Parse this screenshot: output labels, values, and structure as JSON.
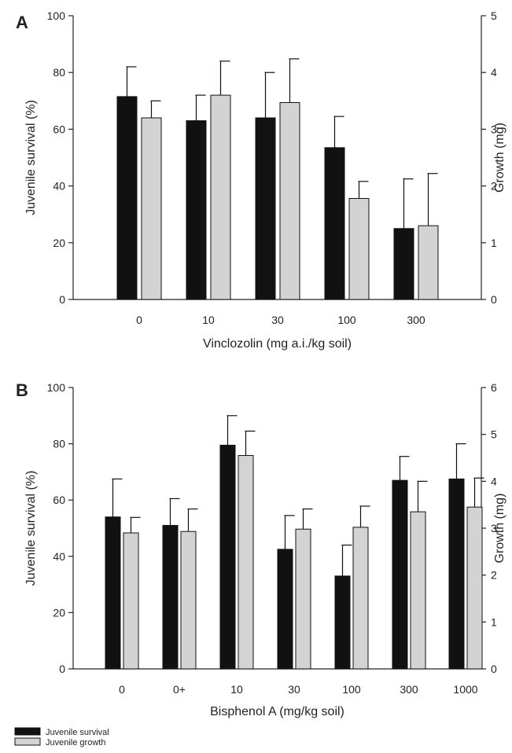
{
  "chart_data": [
    {
      "panel": "A",
      "type": "bar",
      "xlabel": "Vinclozolin (mg a.i./kg soil)",
      "ylabel_left": "Juvenile survival (%)",
      "ylabel_right": "Growth (mg)",
      "categories": [
        "0",
        "10",
        "30",
        "100",
        "300"
      ],
      "ylim_left": [
        0,
        100
      ],
      "ylim_right": [
        0,
        5
      ],
      "yticks_left": [
        "0",
        "20",
        "40",
        "60",
        "80",
        "100"
      ],
      "yticks_right": [
        "0",
        "1",
        "2",
        "3",
        "4",
        "5"
      ],
      "series": [
        {
          "name": "Juvenile survival",
          "axis": "left",
          "color": "#111111",
          "values": [
            71.5,
            63,
            64,
            53.5,
            25
          ],
          "errors": [
            10.5,
            9,
            16,
            11,
            17.5
          ]
        },
        {
          "name": "Juvenile growth",
          "axis": "right",
          "color": "#d3d3d3",
          "values": [
            3.2,
            3.6,
            3.47,
            1.78,
            1.3
          ],
          "errors": [
            0.3,
            0.6,
            0.77,
            0.3,
            0.92
          ]
        }
      ]
    },
    {
      "panel": "B",
      "type": "bar",
      "xlabel": "Bisphenol A (mg/kg soil)",
      "ylabel_left": "Juvenile survival (%)",
      "ylabel_right": "Growth (mg)",
      "categories": [
        "0",
        "0+",
        "10",
        "30",
        "100",
        "300",
        "1000"
      ],
      "ylim_left": [
        0,
        100
      ],
      "ylim_right": [
        0,
        6
      ],
      "yticks_left": [
        "0",
        "20",
        "40",
        "60",
        "80",
        "100"
      ],
      "yticks_right": [
        "0",
        "1",
        "2",
        "3",
        "4",
        "5",
        "6"
      ],
      "series": [
        {
          "name": "Juvenile survival",
          "axis": "left",
          "color": "#111111",
          "values": [
            54,
            51,
            79.5,
            42.5,
            33,
            67,
            67.5
          ],
          "errors": [
            13.5,
            9.5,
            10.5,
            12,
            11,
            8.5,
            12.5
          ]
        },
        {
          "name": "Juvenile growth",
          "axis": "right",
          "color": "#d3d3d3",
          "values": [
            2.9,
            2.93,
            4.55,
            2.98,
            3.02,
            3.35,
            3.45
          ],
          "errors": [
            0.33,
            0.48,
            0.52,
            0.43,
            0.45,
            0.65,
            0.62
          ]
        }
      ]
    }
  ],
  "legend": {
    "items": [
      {
        "label": "Juvenile survival",
        "color": "#111111"
      },
      {
        "label": "Juvenile growth",
        "color": "#d3d3d3"
      }
    ]
  }
}
